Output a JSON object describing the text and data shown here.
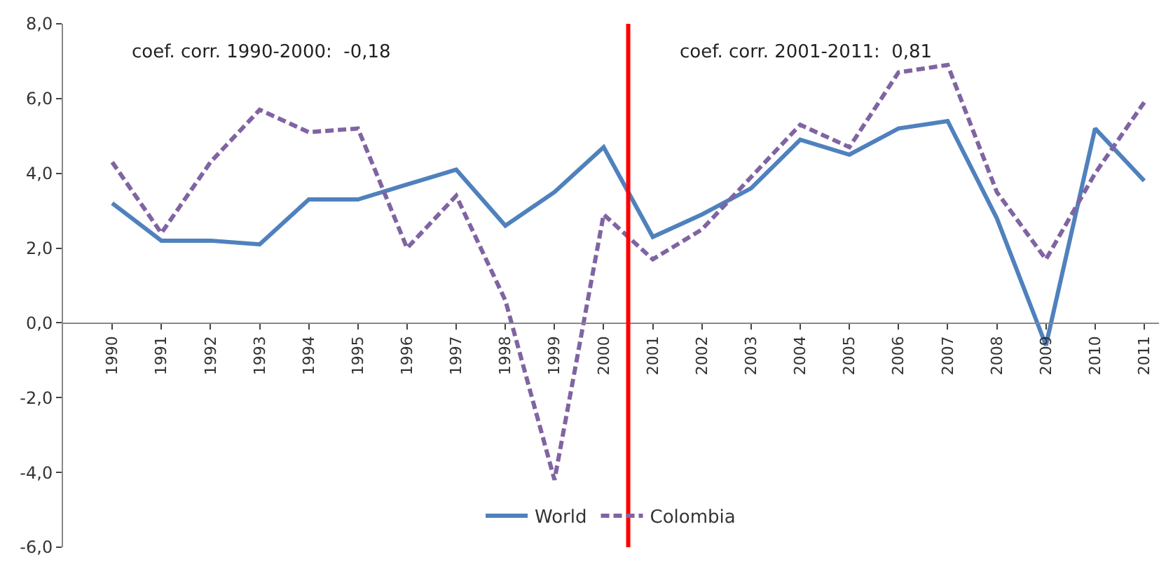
{
  "chart_data": {
    "type": "line",
    "x": [
      1990,
      1991,
      1992,
      1993,
      1994,
      1995,
      1996,
      1997,
      1998,
      1999,
      2000,
      2001,
      2002,
      2003,
      2004,
      2005,
      2006,
      2007,
      2008,
      2009,
      2010,
      2011
    ],
    "series": [
      {
        "name": "World",
        "color": "#4f81bd",
        "line_style": "solid",
        "values": [
          3.2,
          2.2,
          2.2,
          2.1,
          3.3,
          3.3,
          3.7,
          4.1,
          2.6,
          3.5,
          4.7,
          2.3,
          2.9,
          3.6,
          4.9,
          4.5,
          5.2,
          5.4,
          2.8,
          -0.6,
          5.2,
          3.8
        ]
      },
      {
        "name": "Colombia",
        "color": "#8064a2",
        "line_style": "dashed",
        "values": [
          4.3,
          2.4,
          4.3,
          5.7,
          5.1,
          5.2,
          2.0,
          3.4,
          0.6,
          -4.2,
          2.9,
          1.7,
          2.5,
          3.9,
          5.3,
          4.7,
          6.7,
          6.9,
          3.5,
          1.7,
          4.0,
          5.9
        ]
      }
    ],
    "xlim": [
      1989,
      2011.3
    ],
    "xticks": [
      1990,
      1991,
      1992,
      1993,
      1994,
      1995,
      1996,
      1997,
      1998,
      1999,
      2000,
      2001,
      2002,
      2003,
      2004,
      2005,
      2006,
      2007,
      2008,
      2009,
      2010,
      2011
    ],
    "ylim": [
      -6,
      8
    ],
    "yticks": [
      {
        "value": -6,
        "label": "-6,0"
      },
      {
        "value": -4,
        "label": "-4,0"
      },
      {
        "value": -2,
        "label": "-2,0"
      },
      {
        "value": 0,
        "label": "0,0"
      },
      {
        "value": 2,
        "label": "2,0"
      },
      {
        "value": 4,
        "label": "4,0"
      },
      {
        "value": 6,
        "label": "6,0"
      },
      {
        "value": 8,
        "label": "8,0"
      }
    ],
    "ref_lines": [
      {
        "axis": "x",
        "value": 2000.5,
        "label": null,
        "color": "#ff0000",
        "line_style": "solid"
      }
    ],
    "annotations": [
      "coef. corr. 1990-2000:  -0,18",
      "coef. corr. 2001-2011:  0,81"
    ],
    "legend": "bottom",
    "marker": "none"
  }
}
